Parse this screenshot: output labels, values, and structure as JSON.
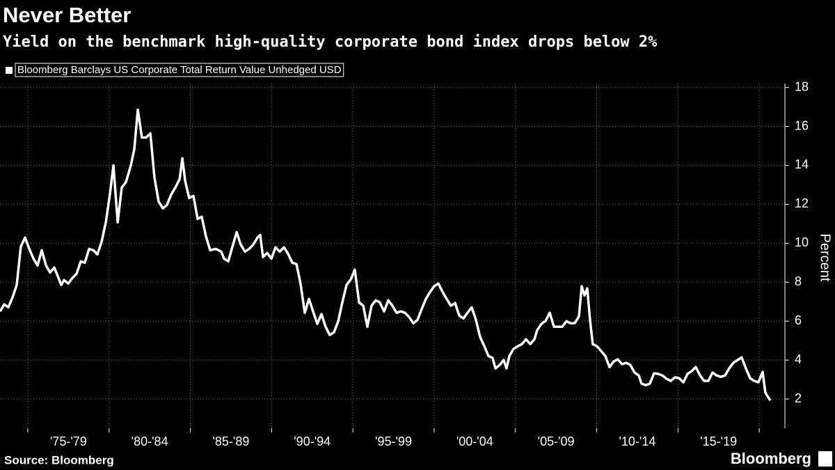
{
  "chart_data": {
    "type": "line",
    "title": "Never Better",
    "subtitle": "Yield on the benchmark high-quality corporate bond index drops below 2%",
    "y_label": "Percent",
    "source": "Source: Bloomberg",
    "branding": "Bloomberg",
    "x": [
      1973.29,
      1973.55,
      1973.8,
      1974.06,
      1974.32,
      1974.57,
      1974.83,
      1975.09,
      1975.35,
      1975.6,
      1975.86,
      1976.12,
      1976.37,
      1976.63,
      1976.89,
      1977.06,
      1977.23,
      1977.49,
      1977.74,
      1978.0,
      1978.26,
      1978.51,
      1978.77,
      1979.03,
      1979.28,
      1979.54,
      1979.8,
      1980.05,
      1980.27,
      1980.53,
      1980.78,
      1981.04,
      1981.34,
      1981.55,
      1981.77,
      1982.02,
      1982.28,
      1982.54,
      1982.79,
      1983.05,
      1983.31,
      1983.56,
      1983.82,
      1984.08,
      1984.34,
      1984.51,
      1984.68,
      1984.93,
      1985.19,
      1985.45,
      1985.7,
      1985.96,
      1986.22,
      1986.56,
      1986.9,
      1987.07,
      1987.33,
      1987.59,
      1987.85,
      1988.1,
      1988.36,
      1988.62,
      1988.87,
      1989.13,
      1989.3,
      1989.47,
      1989.73,
      1989.99,
      1990.24,
      1990.5,
      1990.76,
      1991.01,
      1991.27,
      1991.53,
      1991.78,
      1992.04,
      1992.3,
      1992.55,
      1992.81,
      1993.07,
      1993.32,
      1993.58,
      1993.84,
      1994.1,
      1994.35,
      1994.61,
      1994.87,
      1995.12,
      1995.38,
      1995.64,
      1995.89,
      1996.15,
      1996.41,
      1996.66,
      1996.92,
      1997.18,
      1997.43,
      1997.69,
      1997.95,
      1998.2,
      1998.46,
      1998.72,
      1998.98,
      1999.23,
      1999.49,
      1999.75,
      2000.0,
      2000.26,
      2000.52,
      2000.77,
      2001.03,
      2001.29,
      2001.54,
      2001.8,
      2002.06,
      2002.31,
      2002.57,
      2002.83,
      2003.09,
      2003.34,
      2003.6,
      2003.77,
      2004.03,
      2004.28,
      2004.45,
      2004.63,
      2004.88,
      2005.14,
      2005.4,
      2005.65,
      2005.91,
      2006.17,
      2006.34,
      2006.6,
      2006.85,
      2007.11,
      2007.37,
      2007.62,
      2007.88,
      2008.14,
      2008.39,
      2008.65,
      2008.91,
      2009.08,
      2009.25,
      2009.42,
      2009.59,
      2009.76,
      2010.02,
      2010.28,
      2010.53,
      2010.79,
      2011.05,
      2011.3,
      2011.56,
      2011.82,
      2012.07,
      2012.33,
      2012.59,
      2012.76,
      2013.02,
      2013.27,
      2013.53,
      2013.79,
      2014.04,
      2014.3,
      2014.56,
      2014.81,
      2015.07,
      2015.33,
      2015.59,
      2015.84,
      2016.1,
      2016.36,
      2016.61,
      2016.87,
      2017.13,
      2017.38,
      2017.64,
      2017.9,
      2018.15,
      2018.41,
      2018.67,
      2018.92,
      2019.18,
      2019.44,
      2019.69,
      2019.95,
      2020.21,
      2020.38,
      2020.68
    ],
    "series": [
      {
        "name": "Bloomberg Barclays US Corporate Total Return Value Unhedged USD",
        "color": "#ffffff",
        "values": [
          6.5,
          6.86,
          6.71,
          7.21,
          7.86,
          9.82,
          10.29,
          9.71,
          9.21,
          8.86,
          9.64,
          8.86,
          8.5,
          8.75,
          8.21,
          7.86,
          8.11,
          7.93,
          8.21,
          8.43,
          9.07,
          9.0,
          9.71,
          9.64,
          9.43,
          10.07,
          11.07,
          12.5,
          14.0,
          11.07,
          12.86,
          13.14,
          14.0,
          14.82,
          16.86,
          15.43,
          15.43,
          15.64,
          13.39,
          12.14,
          11.79,
          11.96,
          12.5,
          12.86,
          13.29,
          14.36,
          13.21,
          12.32,
          12.43,
          11.25,
          11.36,
          10.36,
          9.64,
          9.71,
          9.57,
          9.21,
          9.07,
          9.82,
          10.57,
          9.93,
          9.57,
          9.71,
          9.93,
          10.29,
          10.43,
          9.29,
          9.5,
          9.21,
          9.79,
          9.57,
          9.79,
          9.46,
          9.0,
          8.93,
          7.93,
          6.43,
          7.14,
          6.5,
          5.86,
          6.36,
          5.71,
          5.29,
          5.43,
          6.0,
          6.96,
          7.86,
          8.14,
          8.64,
          6.96,
          6.79,
          5.71,
          6.79,
          7.07,
          6.96,
          6.5,
          7.07,
          6.79,
          6.43,
          6.5,
          6.43,
          6.21,
          5.89,
          6.07,
          6.61,
          7.14,
          7.5,
          7.79,
          7.93,
          7.5,
          7.14,
          6.79,
          6.93,
          6.29,
          6.14,
          6.43,
          6.71,
          6.07,
          5.18,
          4.71,
          4.21,
          4.11,
          3.57,
          3.75,
          4.0,
          3.57,
          4.21,
          4.57,
          4.71,
          4.82,
          5.07,
          4.82,
          5.07,
          5.54,
          5.86,
          6.0,
          6.43,
          5.71,
          5.71,
          5.71,
          6.0,
          5.89,
          5.89,
          6.25,
          7.79,
          7.32,
          7.68,
          6.07,
          4.82,
          4.71,
          4.46,
          4.21,
          3.64,
          3.93,
          4.04,
          3.79,
          3.86,
          3.75,
          3.36,
          3.21,
          2.79,
          2.71,
          2.79,
          3.32,
          3.29,
          3.21,
          3.04,
          2.93,
          3.11,
          3.07,
          2.86,
          3.29,
          3.43,
          3.64,
          3.21,
          2.93,
          2.93,
          3.36,
          3.21,
          3.14,
          3.21,
          3.57,
          3.86,
          4.0,
          4.14,
          3.57,
          3.07,
          2.93,
          2.86,
          3.39,
          2.32,
          1.93
        ]
      }
    ],
    "xlim": [
      1973.29,
      2021.58
    ],
    "x_gridlines": [
      1975,
      1980,
      1985,
      1990,
      1995,
      2000,
      2005,
      2010,
      2015,
      2020
    ],
    "xticks": [
      {
        "value": 1977.5,
        "label": "'75-'79"
      },
      {
        "value": 1982.5,
        "label": "'80-'84"
      },
      {
        "value": 1987.5,
        "label": "'85-'89"
      },
      {
        "value": 1992.5,
        "label": "'90-'94"
      },
      {
        "value": 1997.5,
        "label": "'95-'99"
      },
      {
        "value": 2002.5,
        "label": "'00-'04"
      },
      {
        "value": 2007.5,
        "label": "'05-'09"
      },
      {
        "value": 2012.5,
        "label": "'10-'14"
      },
      {
        "value": 2017.5,
        "label": "'15-'19"
      }
    ],
    "ylim": [
      0.5,
      18.2
    ],
    "yticks": [
      2,
      4,
      6,
      8,
      10,
      12,
      14,
      16,
      18
    ],
    "grid": true
  }
}
